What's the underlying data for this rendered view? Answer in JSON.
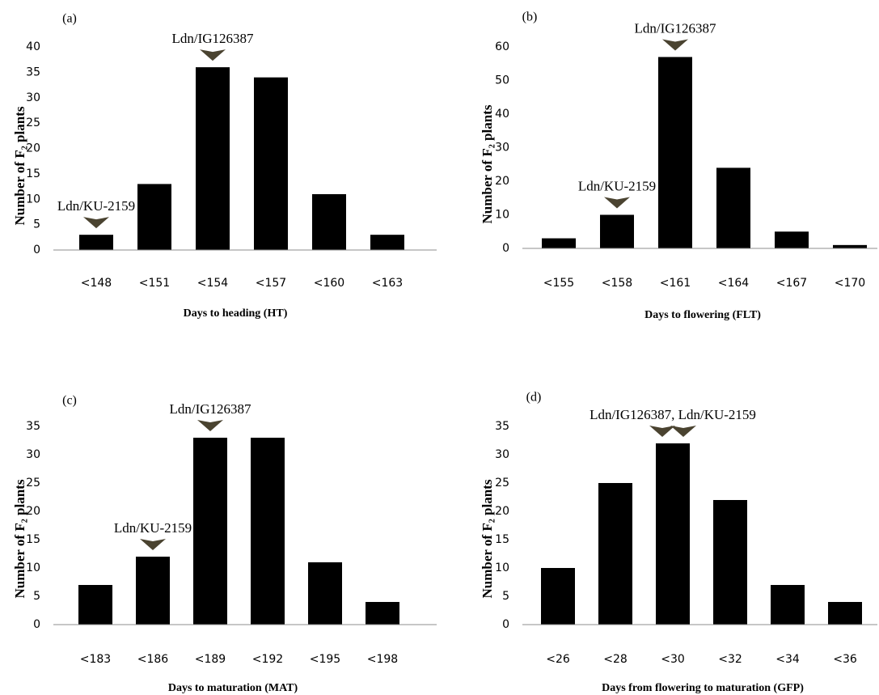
{
  "chart_data": [
    {
      "type": "bar",
      "panel": "(a)",
      "categories": [
        "<148",
        "<151",
        "<154",
        "<157",
        "<160",
        "<163"
      ],
      "values": [
        3,
        13,
        36,
        34,
        11,
        3
      ],
      "ylim": [
        0,
        40
      ],
      "yticks": [
        0,
        5,
        10,
        15,
        20,
        25,
        30,
        35,
        40
      ],
      "xlabel": "Days to heading (HT)",
      "ylabel": "Number of F₂ plants",
      "annotations": [
        {
          "text": "Ldn/KU-2159",
          "category_index": 0,
          "marker_color": "#4a4330"
        },
        {
          "text": "Ldn/IG126387",
          "category_index": 2,
          "marker_color": "#4a4330"
        }
      ]
    },
    {
      "type": "bar",
      "panel": "(b)",
      "categories": [
        "<155",
        "<158",
        "<161",
        "<164",
        "<167",
        "<170"
      ],
      "values": [
        3,
        10,
        57,
        24,
        5,
        1
      ],
      "ylim": [
        0,
        60
      ],
      "yticks": [
        0,
        10,
        20,
        30,
        40,
        50,
        60
      ],
      "xlabel": "Days to flowering (FLT)",
      "ylabel": "Number of F₂ plants",
      "annotations": [
        {
          "text": "Ldn/KU-2159",
          "category_index": 1,
          "marker_color": "#4a4330"
        },
        {
          "text": "Ldn/IG126387",
          "category_index": 2,
          "marker_color": "#4a4330"
        }
      ]
    },
    {
      "type": "bar",
      "panel": "(c)",
      "categories": [
        "<183",
        "<186",
        "<189",
        "<192",
        "<195",
        "<198"
      ],
      "values": [
        7,
        12,
        33,
        33,
        11,
        4
      ],
      "ylim": [
        0,
        35
      ],
      "yticks": [
        0,
        5,
        10,
        15,
        20,
        25,
        30,
        35
      ],
      "xlabel": "Days to maturation (MAT)",
      "ylabel": "Number of F₂ plants",
      "annotations": [
        {
          "text": "Ldn/KU-2159",
          "category_index": 1,
          "marker_color": "#4a4330"
        },
        {
          "text": "Ldn/IG126387",
          "category_index": 2,
          "marker_color": "#4a4330"
        }
      ]
    },
    {
      "type": "bar",
      "panel": "(d)",
      "categories": [
        "<26",
        "<28",
        "<30",
        "<32",
        "<34",
        "<36"
      ],
      "values": [
        10,
        25,
        32,
        22,
        7,
        4
      ],
      "ylim": [
        0,
        35
      ],
      "yticks": [
        0,
        5,
        10,
        15,
        20,
        25,
        30,
        35
      ],
      "xlabel": "Days from flowering to maturation (GFP)",
      "ylabel": "Number of F₂ plants",
      "annotations": [
        {
          "text": "Ldn/IG126387, Ldn/KU-2159",
          "category_index": 2,
          "marker_color": "#4a4330",
          "double_marker": true
        }
      ]
    }
  ]
}
